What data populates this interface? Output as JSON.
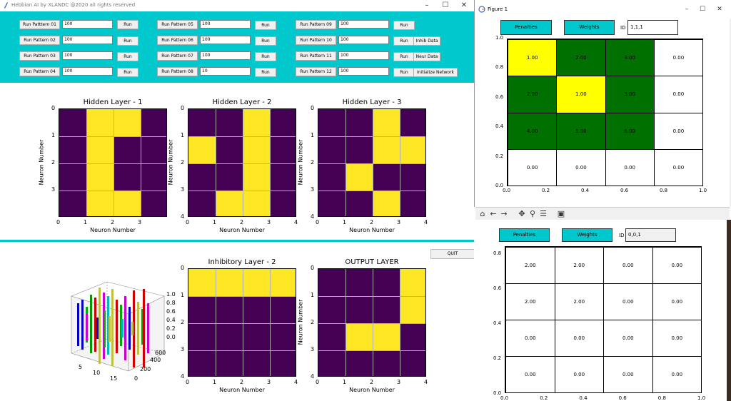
{
  "main_window": {
    "title": "Hebbian AI by XLANDC @2020 all rights reserved",
    "controls": {
      "minimize": "–",
      "maximize": "☐",
      "close": "✕"
    }
  },
  "patterns": [
    {
      "label": "Run Patttern 01",
      "value": "100",
      "run": "Run"
    },
    {
      "label": "Run Pattern 02",
      "value": "100",
      "run": "Run"
    },
    {
      "label": "Run Pattern 03",
      "value": "100",
      "run": "Run"
    },
    {
      "label": "Run Pattern 04",
      "value": "100",
      "run": "Run"
    },
    {
      "label": "Run Pattern 05",
      "value": "100",
      "run": "Run"
    },
    {
      "label": "Run Pattern 06",
      "value": "100",
      "run": "Run"
    },
    {
      "label": "Run Pattern 07",
      "value": "100",
      "run": "Run"
    },
    {
      "label": "Run Pattern 08",
      "value": "10",
      "run": "Run"
    },
    {
      "label": "Run Pattern 09",
      "value": "100",
      "run": "Run"
    },
    {
      "label": "Run Pattern 10",
      "value": "100",
      "run": "Run"
    },
    {
      "label": "Run Pattern 11",
      "value": "100",
      "run": "Run"
    },
    {
      "label": "Run Pattern 12",
      "value": "100",
      "run": "Run"
    }
  ],
  "extra_buttons": {
    "inhib_data": "Inhib Data",
    "neur_data": "Neur Data",
    "initialize_network": "Initialize Network",
    "quit": "QUIT"
  },
  "heatmaps": [
    {
      "title": "Hidden Layer - 1",
      "xlabel": "Neuron Number",
      "ylabel": "Neuron Number",
      "xticks": [
        "0",
        "1",
        "2",
        "3"
      ],
      "yticks": [
        "0",
        "1",
        "2",
        "3"
      ],
      "cols": 4,
      "rows": 4,
      "cells": [
        [
          0,
          1,
          1,
          0
        ],
        [
          0,
          1,
          0,
          0
        ],
        [
          0,
          1,
          0,
          0
        ],
        [
          0,
          1,
          1,
          0
        ]
      ]
    },
    {
      "title": "Hidden Layer - 2",
      "xlabel": "Neuron Number",
      "ylabel": "Neuron Number",
      "xticks": [
        "0",
        "1",
        "2",
        "3",
        "4"
      ],
      "yticks": [
        "0",
        "1",
        "2",
        "3",
        "4"
      ],
      "cols": 4,
      "rows": 4,
      "cells": [
        [
          0,
          0,
          1,
          0
        ],
        [
          1,
          0,
          1,
          0
        ],
        [
          0,
          0,
          1,
          0
        ],
        [
          0,
          1,
          1,
          0
        ]
      ]
    },
    {
      "title": "Hidden Layer - 3",
      "xlabel": "Neuron Number",
      "ylabel": "Neuron Number",
      "xticks": [
        "0",
        "1",
        "2",
        "3",
        "4"
      ],
      "yticks": [
        "0",
        "1",
        "2",
        "3",
        "4"
      ],
      "cols": 4,
      "rows": 4,
      "cells": [
        [
          0,
          0,
          1,
          0
        ],
        [
          0,
          0,
          1,
          1
        ],
        [
          0,
          1,
          0,
          0
        ],
        [
          0,
          0,
          1,
          0
        ]
      ]
    },
    {
      "title": "Inhibitory Layer - 2",
      "xlabel": "Neuron Number",
      "ylabel": "",
      "xticks": [
        "0",
        "1",
        "2",
        "3",
        "4"
      ],
      "yticks": [
        "0",
        "1",
        "2",
        "3",
        "4"
      ],
      "cols": 4,
      "rows": 4,
      "cells": [
        [
          1,
          1,
          1,
          1
        ],
        [
          0,
          0,
          0,
          0
        ],
        [
          0,
          0,
          0,
          0
        ],
        [
          0,
          0,
          0,
          0
        ]
      ]
    },
    {
      "title": "OUTPUT LAYER",
      "xlabel": "Neuron Number",
      "ylabel": "Neuron Number",
      "xticks": [
        "0",
        "1",
        "2",
        "3",
        "4"
      ],
      "yticks": [
        "0",
        "1",
        "2",
        "3",
        "4"
      ],
      "cols": 4,
      "rows": 4,
      "cells": [
        [
          0,
          0,
          0,
          1
        ],
        [
          0,
          0,
          0,
          1
        ],
        [
          0,
          1,
          1,
          0
        ],
        [
          0,
          0,
          0,
          0
        ]
      ]
    }
  ],
  "plot3d": {
    "xticks": [
      "5",
      "10",
      "15"
    ],
    "yticks": [
      "0",
      "200",
      "400",
      "600"
    ],
    "zticks": [
      "1.0",
      "0.8",
      "0.6",
      "0.4",
      "0.2",
      "0.0"
    ]
  },
  "colors": {
    "accent": "#00c8cc",
    "viridis_low": "#440154",
    "viridis_high": "#fde725",
    "green": "#007000",
    "yellow": "#ffff00"
  },
  "figure1": {
    "title": "Figure 1",
    "penalties": "Penalties",
    "weights": "Weights",
    "id_label": "ID",
    "id_value": "1,1,1",
    "table": [
      [
        "1.00",
        "2.00",
        "3.00",
        "0.00"
      ],
      [
        "2.00",
        "1.00",
        "3.00",
        "0.00"
      ],
      [
        "4.00",
        "5.00",
        "6.00",
        "0.00"
      ],
      [
        "0.00",
        "0.00",
        "0.00",
        "0.00"
      ]
    ],
    "cell_colors": [
      [
        "yellow",
        "green",
        "green",
        "white"
      ],
      [
        "green",
        "yellow",
        "green",
        "white"
      ],
      [
        "green",
        "green",
        "green",
        "white"
      ],
      [
        "white",
        "white",
        "white",
        "white"
      ]
    ],
    "yticks": [
      "1.0",
      "0.8",
      "0.6",
      "0.4",
      "0.2",
      "0.0"
    ],
    "xticks": [
      "0.0",
      "0.2",
      "0.4",
      "0.6",
      "0.8",
      "1.0"
    ]
  },
  "figure2": {
    "penalties": "Penalties",
    "weights": "Weights",
    "id_label": "ID",
    "id_value": "0,0,1",
    "table": [
      [
        "2.00",
        "2.00",
        "0.00",
        "0.00"
      ],
      [
        "2.00",
        "2.00",
        "0.00",
        "0.00"
      ],
      [
        "0.00",
        "0.00",
        "0.00",
        "0.00"
      ],
      [
        "0.00",
        "0.00",
        "0.00",
        "0.00"
      ]
    ],
    "yticks": [
      "0.8",
      "0.6",
      "0.4",
      "0.2",
      "0.0"
    ],
    "xticks": [
      "0.0",
      "0.2",
      "0.4",
      "0.6",
      "0.8",
      "1.0"
    ]
  }
}
